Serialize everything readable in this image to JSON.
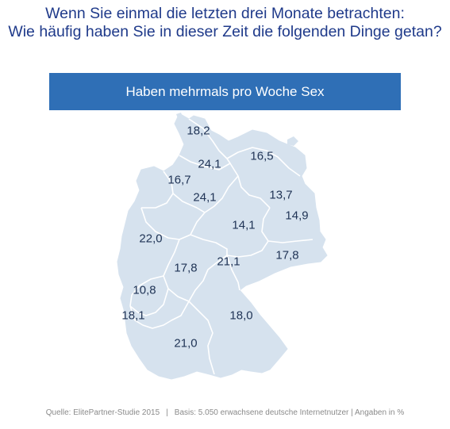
{
  "title": {
    "line1": "Wenn Sie einmal die letzten drei Monate betrachten:",
    "line2": "Wie häufig haben Sie in dieser Zeit die folgenden Dinge getan?"
  },
  "banner": {
    "label": "Haben mehrmals pro Woche Sex"
  },
  "map": {
    "fill_color": "#d6e2ee",
    "border_color": "#ffffff",
    "values": [
      "18,2",
      "24,1",
      "16,5",
      "16,7",
      "24,1",
      "13,7",
      "14,9",
      "14,1",
      "22,0",
      "21,1",
      "17,8",
      "17,8",
      "10,8",
      "18,1",
      "18,0",
      "21,0"
    ]
  },
  "footer": {
    "source": "Quelle: ElitePartner-Studie 2015",
    "separator": "|",
    "basis": "Basis: 5.050 erwachsene deutsche Internetnutzer | Angaben in %"
  },
  "colors": {
    "title": "#1f3a8a",
    "banner": "#2f6fb6",
    "label": "#1f3355"
  }
}
